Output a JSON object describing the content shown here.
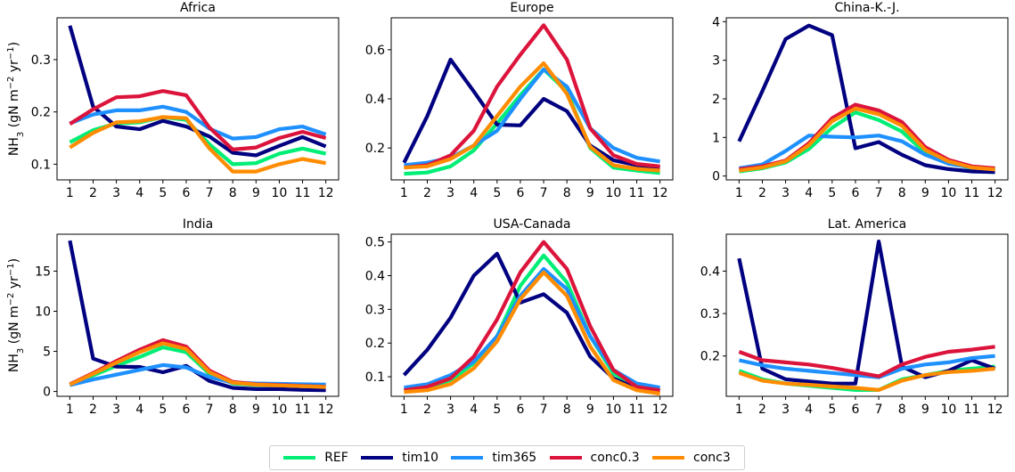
{
  "chart_data": [
    {
      "type": "line",
      "title": "Africa",
      "ylabel": "NH$_3$ (gN m$^{-2}$ yr$^{-1}$)",
      "x": [
        1,
        2,
        3,
        4,
        5,
        6,
        7,
        8,
        9,
        10,
        11,
        12
      ],
      "ylim": [
        0.07,
        0.38
      ],
      "yticks": [
        0.1,
        0.2,
        0.3
      ],
      "ytick_labels": [
        "0.1",
        "0.2",
        "0.3"
      ],
      "series": [
        {
          "name": "REF",
          "color": "#00ee76",
          "values": [
            0.142,
            0.165,
            0.178,
            0.18,
            0.19,
            0.185,
            0.138,
            0.1,
            0.102,
            0.12,
            0.13,
            0.12
          ]
        },
        {
          "name": "tim10",
          "color": "#000080",
          "values": [
            0.365,
            0.21,
            0.172,
            0.167,
            0.183,
            0.172,
            0.153,
            0.122,
            0.117,
            0.135,
            0.152,
            0.134
          ]
        },
        {
          "name": "tim365",
          "color": "#1e90ff",
          "values": [
            0.178,
            0.195,
            0.203,
            0.203,
            0.21,
            0.2,
            0.168,
            0.149,
            0.152,
            0.167,
            0.172,
            0.157
          ]
        },
        {
          "name": "conc0.3",
          "color": "#dc143c",
          "values": [
            0.177,
            0.205,
            0.228,
            0.23,
            0.24,
            0.232,
            0.17,
            0.128,
            0.132,
            0.15,
            0.162,
            0.15
          ]
        },
        {
          "name": "conc3",
          "color": "#ff8c00",
          "values": [
            0.132,
            0.16,
            0.18,
            0.182,
            0.19,
            0.188,
            0.13,
            0.086,
            0.086,
            0.1,
            0.11,
            0.102
          ]
        }
      ]
    },
    {
      "type": "line",
      "title": "Europe",
      "x": [
        1,
        2,
        3,
        4,
        5,
        6,
        7,
        8,
        9,
        10,
        11,
        12
      ],
      "ylim": [
        0.07,
        0.73
      ],
      "yticks": [
        0.2,
        0.4,
        0.6
      ],
      "ytick_labels": [
        "0.2",
        "0.4",
        "0.6"
      ],
      "series": [
        {
          "name": "REF",
          "color": "#00ee76",
          "values": [
            0.095,
            0.1,
            0.125,
            0.19,
            0.3,
            0.415,
            0.52,
            0.43,
            0.2,
            0.12,
            0.108,
            0.098
          ]
        },
        {
          "name": "tim10",
          "color": "#000080",
          "values": [
            0.14,
            0.33,
            0.56,
            0.43,
            0.295,
            0.292,
            0.4,
            0.35,
            0.21,
            0.15,
            0.13,
            0.12
          ]
        },
        {
          "name": "tim365",
          "color": "#1e90ff",
          "values": [
            0.13,
            0.14,
            0.16,
            0.21,
            0.27,
            0.4,
            0.52,
            0.45,
            0.28,
            0.2,
            0.16,
            0.145
          ]
        },
        {
          "name": "conc0.3",
          "color": "#dc143c",
          "values": [
            0.12,
            0.13,
            0.17,
            0.27,
            0.45,
            0.58,
            0.7,
            0.56,
            0.28,
            0.17,
            0.135,
            0.125
          ]
        },
        {
          "name": "conc3",
          "color": "#ff8c00",
          "values": [
            0.12,
            0.125,
            0.155,
            0.21,
            0.33,
            0.45,
            0.545,
            0.42,
            0.205,
            0.13,
            0.115,
            0.108
          ]
        }
      ]
    },
    {
      "type": "line",
      "title": "China-K.-J.",
      "x": [
        1,
        2,
        3,
        4,
        5,
        6,
        7,
        8,
        9,
        10,
        11,
        12
      ],
      "ylim": [
        -0.1,
        4.1
      ],
      "yticks": [
        0,
        1,
        2,
        3,
        4
      ],
      "ytick_labels": [
        "0",
        "1",
        "2",
        "3",
        "4"
      ],
      "series": [
        {
          "name": "REF",
          "color": "#00ee76",
          "values": [
            0.12,
            0.2,
            0.35,
            0.7,
            1.25,
            1.65,
            1.45,
            1.15,
            0.6,
            0.35,
            0.2,
            0.15
          ]
        },
        {
          "name": "tim10",
          "color": "#000080",
          "values": [
            0.9,
            2.2,
            3.55,
            3.9,
            3.65,
            0.72,
            0.88,
            0.55,
            0.28,
            0.18,
            0.12,
            0.1
          ]
        },
        {
          "name": "tim365",
          "color": "#1e90ff",
          "values": [
            0.2,
            0.3,
            0.65,
            1.05,
            1.02,
            1.0,
            1.05,
            0.9,
            0.55,
            0.32,
            0.22,
            0.18
          ]
        },
        {
          "name": "conc0.3",
          "color": "#dc143c",
          "values": [
            0.18,
            0.25,
            0.4,
            0.85,
            1.5,
            1.85,
            1.7,
            1.4,
            0.75,
            0.42,
            0.25,
            0.2
          ]
        },
        {
          "name": "conc3",
          "color": "#ff8c00",
          "values": [
            0.14,
            0.22,
            0.38,
            0.8,
            1.42,
            1.75,
            1.6,
            1.3,
            0.68,
            0.38,
            0.22,
            0.17
          ]
        }
      ]
    },
    {
      "type": "line",
      "title": "India",
      "ylabel": "NH$_3$ (gN m$^{-2}$ yr$^{-1}$)",
      "x": [
        1,
        2,
        3,
        4,
        5,
        6,
        7,
        8,
        9,
        10,
        11,
        12
      ],
      "ylim": [
        -0.6,
        19.6
      ],
      "yticks": [
        0,
        5,
        10,
        15
      ],
      "ytick_labels": [
        "0",
        "5",
        "10",
        "15"
      ],
      "series": [
        {
          "name": "REF",
          "color": "#00ee76",
          "values": [
            0.8,
            2.0,
            3.2,
            4.3,
            5.5,
            4.9,
            2.2,
            1.0,
            0.8,
            0.75,
            0.7,
            0.6
          ]
        },
        {
          "name": "tim10",
          "color": "#000080",
          "values": [
            18.8,
            4.1,
            3.1,
            3.05,
            2.4,
            3.2,
            1.3,
            0.45,
            0.3,
            0.3,
            0.2,
            0.15
          ]
        },
        {
          "name": "tim365",
          "color": "#1e90ff",
          "values": [
            0.8,
            1.5,
            2.1,
            2.7,
            3.3,
            3.0,
            1.8,
            1.1,
            1.0,
            0.95,
            0.9,
            0.85
          ]
        },
        {
          "name": "conc0.3",
          "color": "#dc143c",
          "values": [
            0.9,
            2.3,
            3.8,
            5.2,
            6.4,
            5.6,
            2.6,
            1.2,
            0.9,
            0.8,
            0.7,
            0.6
          ]
        },
        {
          "name": "conc3",
          "color": "#ff8c00",
          "values": [
            0.85,
            2.2,
            3.6,
            4.9,
            6.0,
            5.3,
            2.4,
            1.1,
            0.85,
            0.75,
            0.65,
            0.55
          ]
        }
      ]
    },
    {
      "type": "line",
      "title": "USA-Canada",
      "x": [
        1,
        2,
        3,
        4,
        5,
        6,
        7,
        8,
        9,
        10,
        11,
        12
      ],
      "ylim": [
        0.042,
        0.523
      ],
      "yticks": [
        0.1,
        0.2,
        0.3,
        0.4,
        0.5
      ],
      "ytick_labels": [
        "0.1",
        "0.2",
        "0.3",
        "0.4",
        "0.5"
      ],
      "series": [
        {
          "name": "REF",
          "color": "#00ee76",
          "values": [
            0.06,
            0.065,
            0.09,
            0.14,
            0.22,
            0.37,
            0.46,
            0.38,
            0.22,
            0.11,
            0.07,
            0.06
          ]
        },
        {
          "name": "tim10",
          "color": "#000080",
          "values": [
            0.105,
            0.18,
            0.275,
            0.4,
            0.465,
            0.32,
            0.345,
            0.29,
            0.16,
            0.095,
            0.065,
            0.06
          ]
        },
        {
          "name": "tim365",
          "color": "#1e90ff",
          "values": [
            0.068,
            0.078,
            0.105,
            0.145,
            0.22,
            0.34,
            0.42,
            0.36,
            0.22,
            0.12,
            0.08,
            0.068
          ]
        },
        {
          "name": "conc0.3",
          "color": "#dc143c",
          "values": [
            0.06,
            0.07,
            0.095,
            0.16,
            0.27,
            0.41,
            0.5,
            0.42,
            0.25,
            0.12,
            0.07,
            0.06
          ]
        },
        {
          "name": "conc3",
          "color": "#ff8c00",
          "values": [
            0.055,
            0.06,
            0.078,
            0.125,
            0.205,
            0.33,
            0.41,
            0.34,
            0.19,
            0.09,
            0.06,
            0.05
          ]
        }
      ]
    },
    {
      "type": "line",
      "title": "Lat. America",
      "x": [
        1,
        2,
        3,
        4,
        5,
        6,
        7,
        8,
        9,
        10,
        11,
        12
      ],
      "ylim": [
        0.105,
        0.487
      ],
      "yticks": [
        0.2,
        0.3,
        0.4
      ],
      "ytick_labels": [
        "0.2",
        "0.3",
        "0.4"
      ],
      "series": [
        {
          "name": "REF",
          "color": "#00ee76",
          "values": [
            0.165,
            0.145,
            0.135,
            0.13,
            0.125,
            0.12,
            0.12,
            0.145,
            0.155,
            0.165,
            0.17,
            0.175
          ]
        },
        {
          "name": "tim10",
          "color": "#000080",
          "values": [
            0.43,
            0.17,
            0.145,
            0.14,
            0.135,
            0.135,
            0.47,
            0.175,
            0.15,
            0.165,
            0.19,
            0.17
          ]
        },
        {
          "name": "tim365",
          "color": "#1e90ff",
          "values": [
            0.19,
            0.178,
            0.17,
            0.165,
            0.16,
            0.155,
            0.15,
            0.17,
            0.18,
            0.185,
            0.195,
            0.2
          ]
        },
        {
          "name": "conc0.3",
          "color": "#dc143c",
          "values": [
            0.21,
            0.19,
            0.185,
            0.18,
            0.172,
            0.162,
            0.152,
            0.18,
            0.198,
            0.21,
            0.215,
            0.222
          ]
        },
        {
          "name": "conc3",
          "color": "#ff8c00",
          "values": [
            0.16,
            0.142,
            0.135,
            0.132,
            0.128,
            0.125,
            0.12,
            0.142,
            0.155,
            0.162,
            0.165,
            0.17
          ]
        }
      ]
    }
  ],
  "legend": {
    "placement": "bottom-center",
    "items": [
      {
        "label": "REF",
        "color": "#00ee76"
      },
      {
        "label": "tim10",
        "color": "#000080"
      },
      {
        "label": "tim365",
        "color": "#1e90ff"
      },
      {
        "label": "conc0.3",
        "color": "#dc143c"
      },
      {
        "label": "conc3",
        "color": "#ff8c00"
      }
    ]
  }
}
